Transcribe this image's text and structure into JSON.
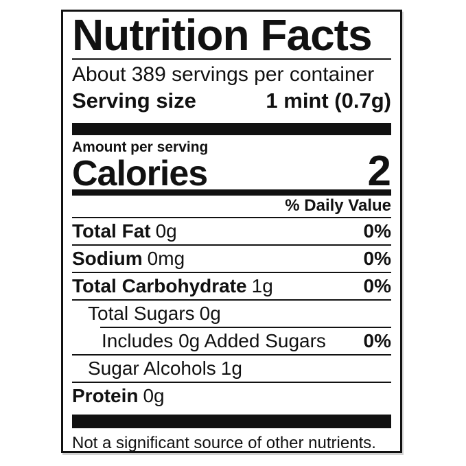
{
  "label": {
    "title": "Nutrition Facts",
    "servings_per_container": "About 389 servings per container",
    "serving_size": {
      "label": "Serving size",
      "value": "1 mint (0.7g)"
    },
    "amount_per_serving": "Amount per serving",
    "calories": {
      "label": "Calories",
      "value": "2"
    },
    "daily_value_header": "% Daily Value",
    "nutrients": [
      {
        "name": "Total Fat",
        "amount": "0g",
        "daily_value": "0%"
      },
      {
        "name": "Sodium",
        "amount": "0mg",
        "daily_value": "0%"
      },
      {
        "name": "Total Carbohydrate",
        "amount": "1g",
        "daily_value": "0%"
      },
      {
        "name": "Total Sugars",
        "amount": "0g",
        "daily_value": ""
      },
      {
        "name": "Includes 0g Added Sugars",
        "amount": "",
        "daily_value": "0%"
      },
      {
        "name": "Sugar Alcohols",
        "amount": "1g",
        "daily_value": ""
      },
      {
        "name": "Protein",
        "amount": "0g",
        "daily_value": ""
      }
    ],
    "footnote": "Not a significant source of other nutrients.",
    "colors": {
      "text": "#111111",
      "bars": "#111111",
      "background": "#ffffff"
    }
  }
}
